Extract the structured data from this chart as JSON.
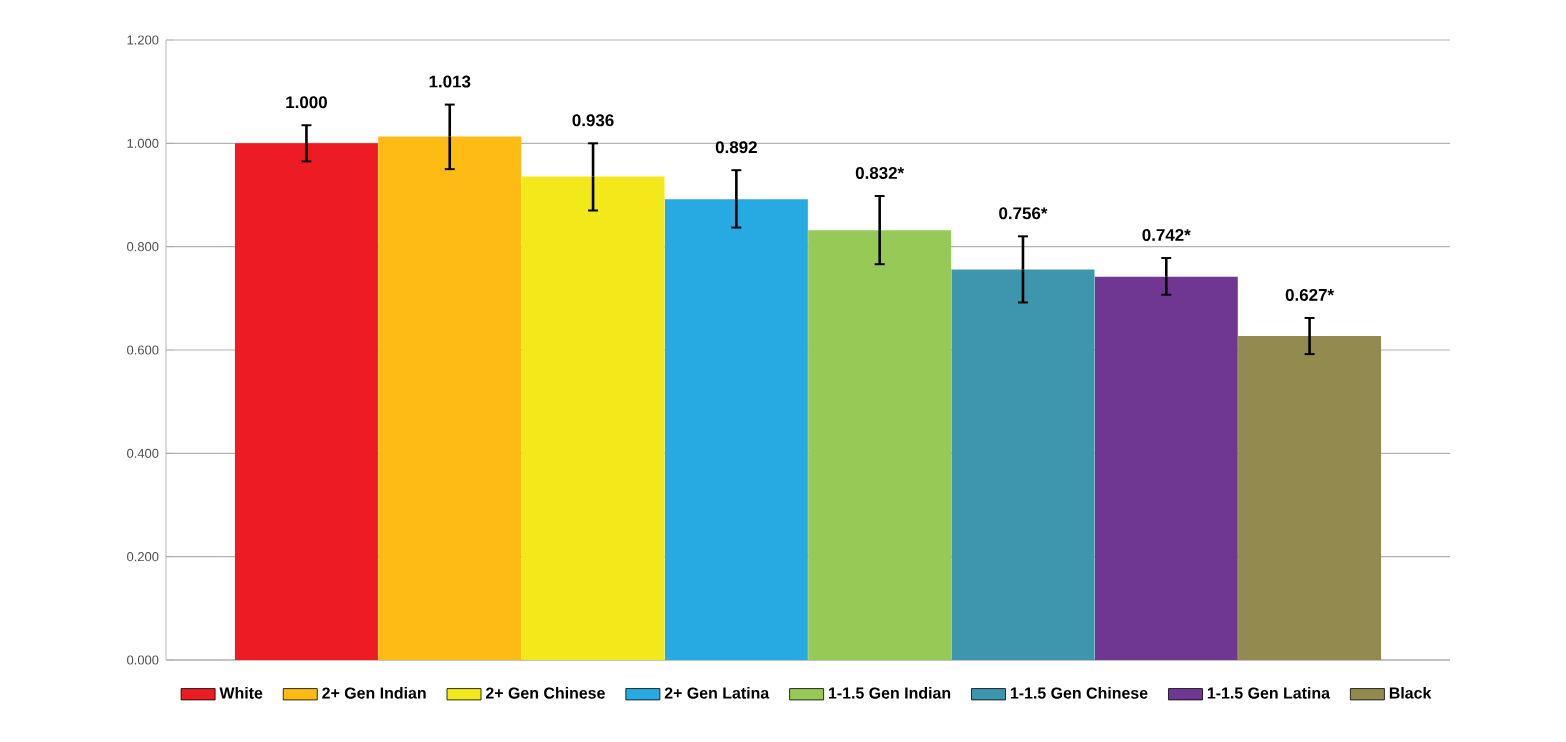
{
  "chart_data": {
    "type": "bar",
    "categories": [
      null,
      null,
      null,
      null,
      null,
      null,
      null,
      null
    ],
    "series": [
      {
        "name": "White",
        "color": "#ed1c24",
        "values": [
          1.0,
          null,
          null,
          null,
          null,
          null,
          null,
          null
        ],
        "errors": [
          [
            0.965,
            1.035
          ],
          null,
          null,
          null,
          null,
          null,
          null,
          null
        ],
        "value_labels": [
          "1.000",
          null,
          null,
          null,
          null,
          null,
          null,
          null
        ]
      },
      {
        "name": "2+ Gen Indian",
        "color": "#fdbb13",
        "values": [
          null,
          1.013,
          null,
          null,
          null,
          null,
          null,
          null
        ],
        "errors": [
          null,
          [
            0.95,
            1.075
          ],
          null,
          null,
          null,
          null,
          null,
          null
        ],
        "value_labels": [
          null,
          "1.013",
          null,
          null,
          null,
          null,
          null,
          null
        ]
      },
      {
        "name": "2+ Gen Chinese",
        "color": "#f2e81a",
        "values": [
          null,
          null,
          0.936,
          null,
          null,
          null,
          null,
          null
        ],
        "errors": [
          null,
          null,
          [
            0.87,
            1.0
          ],
          null,
          null,
          null,
          null,
          null
        ],
        "value_labels": [
          null,
          null,
          "0.936",
          null,
          null,
          null,
          null,
          null
        ]
      },
      {
        "name": "2+  Gen Latina",
        "color": "#27aae1",
        "values": [
          null,
          null,
          null,
          0.892,
          null,
          null,
          null,
          null
        ],
        "errors": [
          null,
          null,
          null,
          [
            0.837,
            0.948
          ],
          null,
          null,
          null,
          null
        ],
        "value_labels": [
          null,
          null,
          null,
          "0.892",
          null,
          null,
          null,
          null
        ]
      },
      {
        "name": "1-1.5 Gen Indian",
        "color": "#96c955",
        "values": [
          null,
          null,
          null,
          null,
          0.832,
          null,
          null,
          null
        ],
        "errors": [
          null,
          null,
          null,
          null,
          [
            0.766,
            0.898
          ],
          null,
          null,
          null
        ],
        "value_labels": [
          null,
          null,
          null,
          null,
          "0.832*",
          null,
          null,
          null
        ]
      },
      {
        "name": "1-1.5 Gen Chinese",
        "color": "#3d96ad",
        "values": [
          null,
          null,
          null,
          null,
          null,
          0.756,
          null,
          null
        ],
        "errors": [
          null,
          null,
          null,
          null,
          null,
          [
            0.692,
            0.82
          ],
          null,
          null
        ],
        "value_labels": [
          null,
          null,
          null,
          null,
          null,
          "0.756*",
          null,
          null
        ]
      },
      {
        "name": "1-1.5 Gen Latina",
        "color": "#6f3792",
        "values": [
          null,
          null,
          null,
          null,
          null,
          null,
          0.742,
          null
        ],
        "errors": [
          null,
          null,
          null,
          null,
          null,
          null,
          [
            0.707,
            0.778
          ],
          null
        ],
        "value_labels": [
          null,
          null,
          null,
          null,
          null,
          null,
          "0.742*",
          null
        ]
      },
      {
        "name": "Black",
        "color": "#938a4f",
        "values": [
          null,
          null,
          null,
          null,
          null,
          null,
          null,
          0.627
        ],
        "errors": [
          null,
          null,
          null,
          null,
          null,
          null,
          null,
          [
            0.592,
            0.662
          ]
        ],
        "value_labels": [
          null,
          null,
          null,
          null,
          null,
          null,
          null,
          "0.627*"
        ]
      }
    ],
    "ylim": [
      0,
      1.2
    ],
    "yticks": [
      {
        "value": 0,
        "label": "0.000"
      },
      {
        "value": 0.2,
        "label": "0.200"
      },
      {
        "value": 0.4,
        "label": "0.400"
      },
      {
        "value": 0.6,
        "label": "0.600"
      },
      {
        "value": 0.8,
        "label": "0.800"
      },
      {
        "value": 1.0,
        "label": "1.000"
      },
      {
        "value": 1.2,
        "label": "1.200"
      }
    ],
    "grid": "y",
    "legend": "bottom"
  }
}
